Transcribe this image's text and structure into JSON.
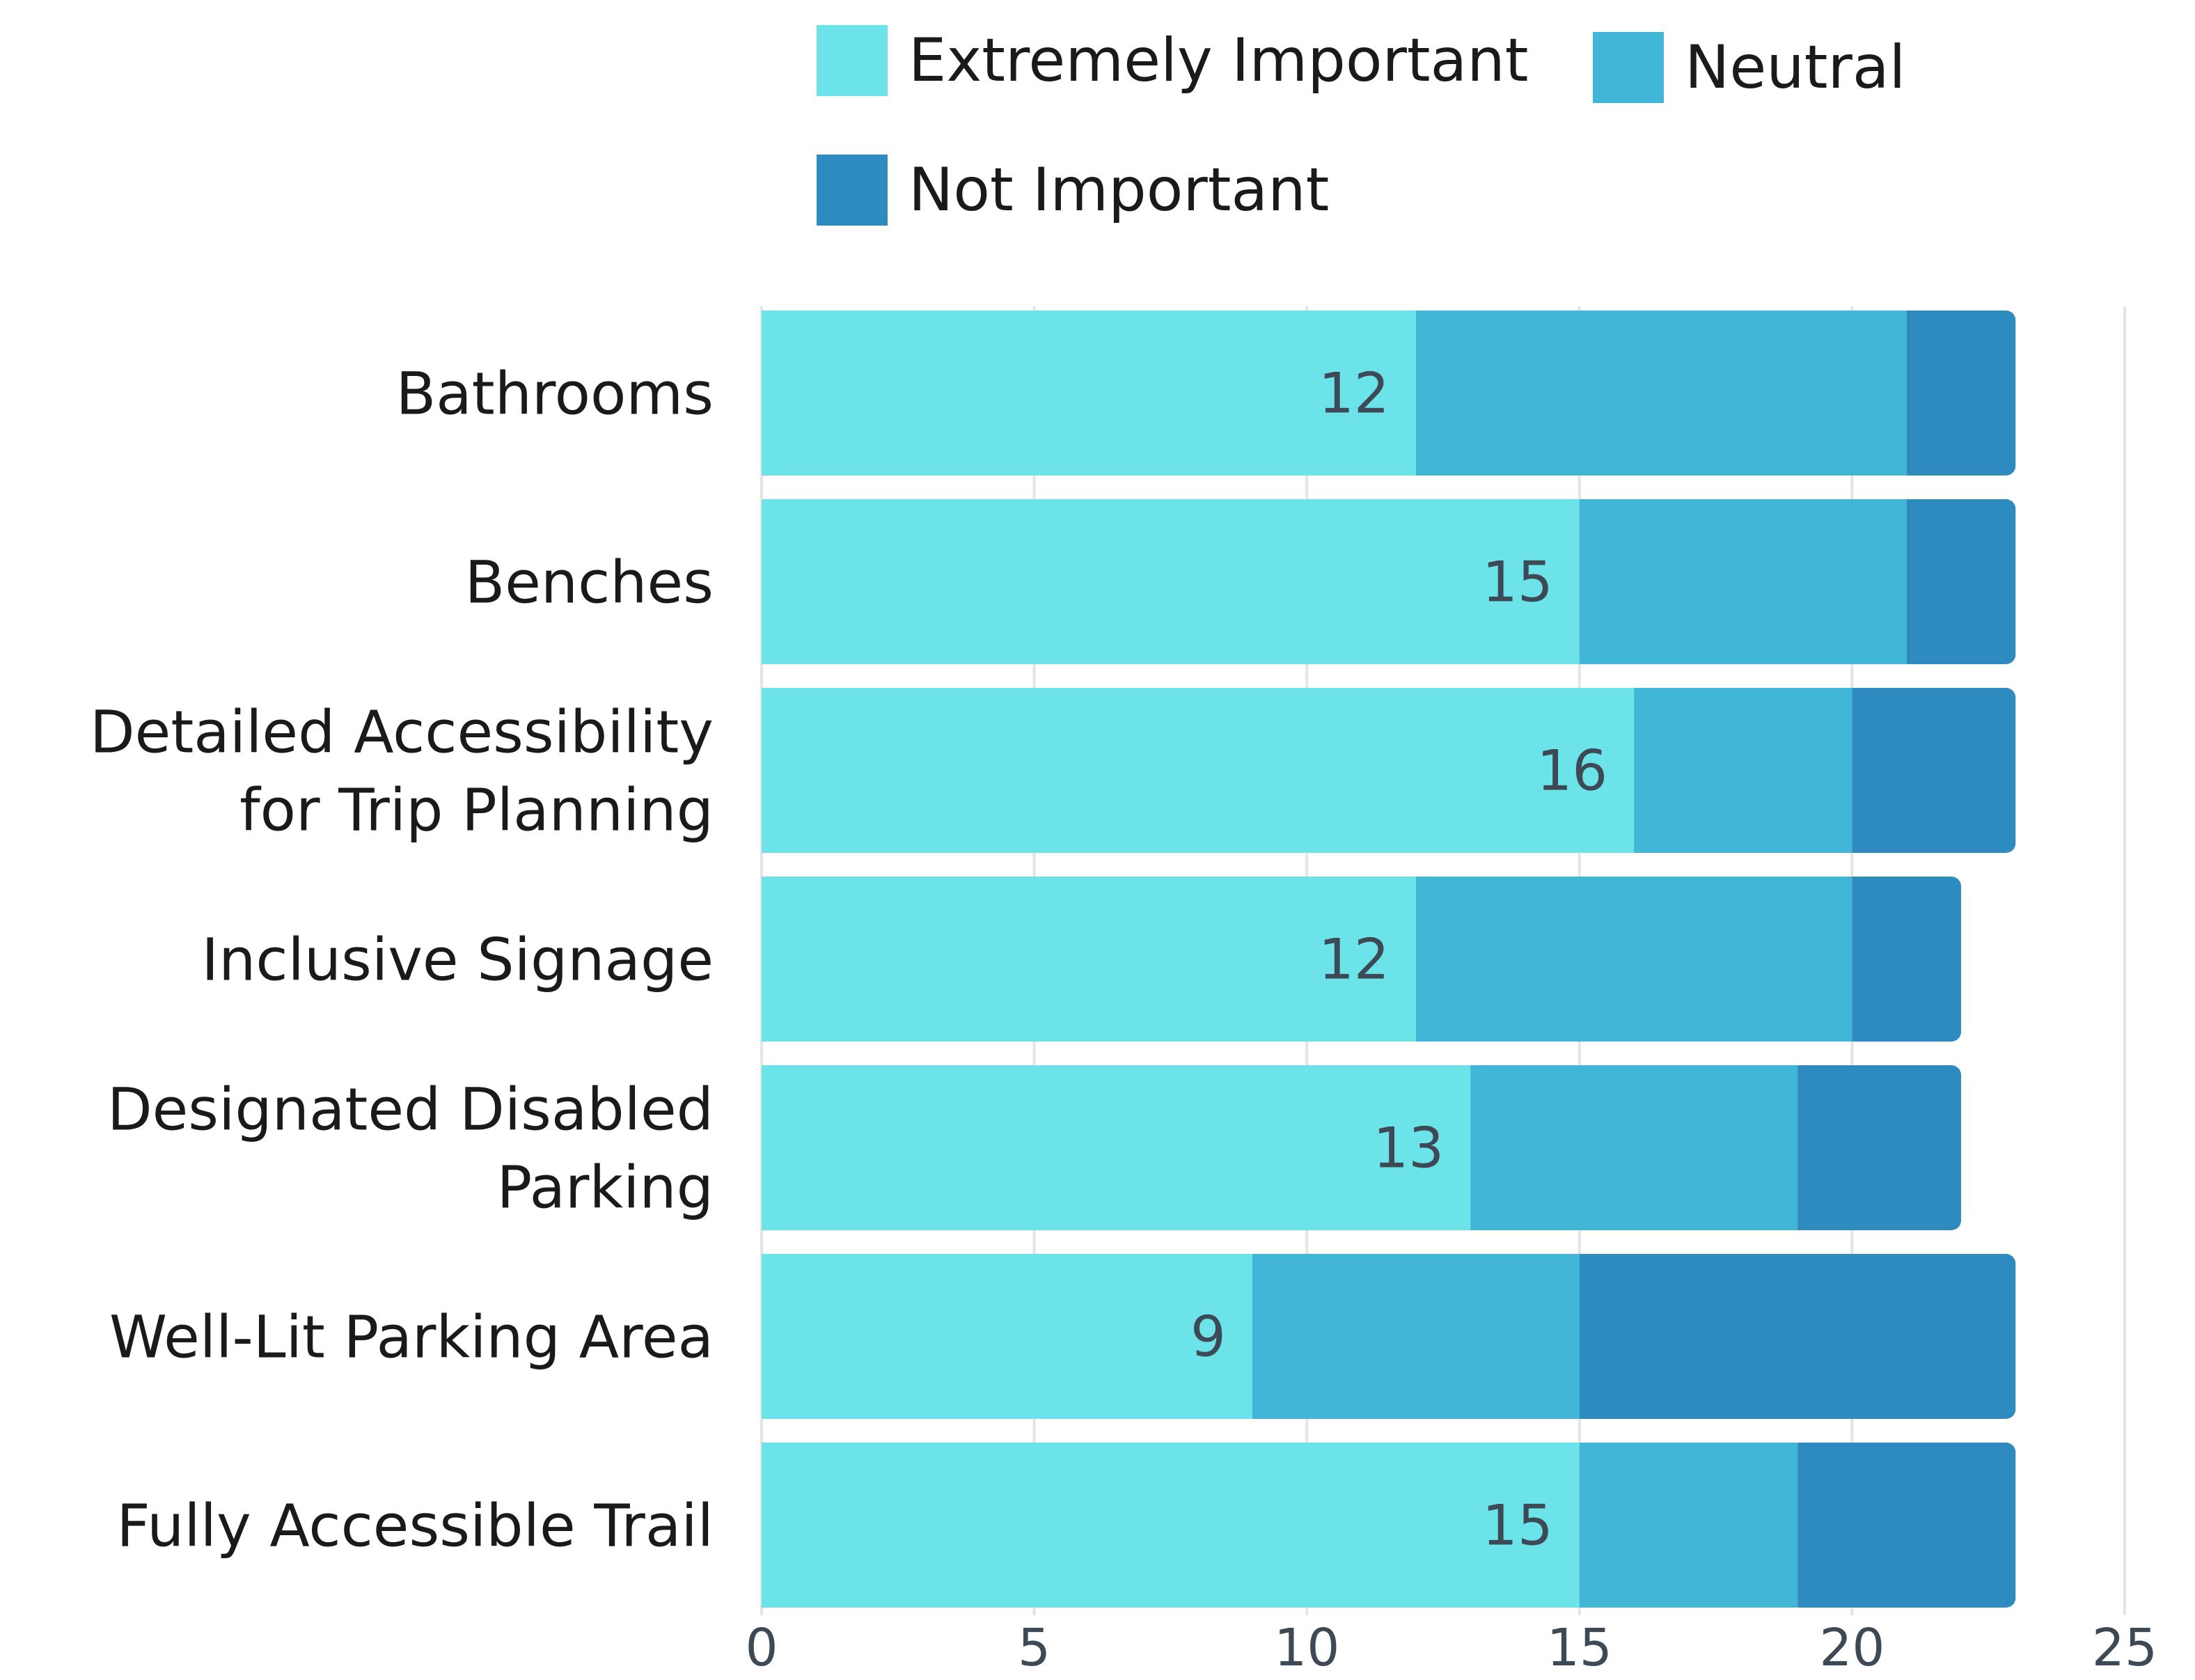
{
  "chart_data": {
    "type": "bar",
    "orientation": "horizontal",
    "stacked": true,
    "categories": [
      "Bathrooms",
      "Benches",
      "Detailed Accessibility for Trip Planning",
      "Inclusive Signage",
      "Designated Disabled Parking",
      "Well-Lit Parking Area",
      "Fully Accessible Trail"
    ],
    "category_lines": [
      [
        "Bathrooms"
      ],
      [
        "Benches"
      ],
      [
        "Detailed Accessibility",
        "for Trip Planning"
      ],
      [
        "Inclusive Signage"
      ],
      [
        "Designated Disabled",
        "Parking"
      ],
      [
        "Well-Lit Parking Area"
      ],
      [
        "Fully Accessible Trail"
      ]
    ],
    "series": [
      {
        "name": "Extremely Important",
        "color": "#6be3e8",
        "values": [
          12,
          15,
          16,
          12,
          13,
          9,
          15
        ],
        "show_labels": true
      },
      {
        "name": "Neutral",
        "color": "#42b6d6",
        "values": [
          9,
          6,
          4,
          8,
          6,
          6,
          4
        ],
        "show_labels": false
      },
      {
        "name": "Not Important",
        "color": "#2e8bc0",
        "values": [
          2,
          2,
          3,
          2,
          3,
          8,
          4
        ],
        "show_labels": false
      }
    ],
    "xlim": [
      0,
      25
    ],
    "xticks": [
      "0",
      "5",
      "10",
      "15",
      "20",
      "25"
    ],
    "grid": true,
    "legend": "top",
    "title": "",
    "xlabel": "",
    "ylabel": ""
  }
}
